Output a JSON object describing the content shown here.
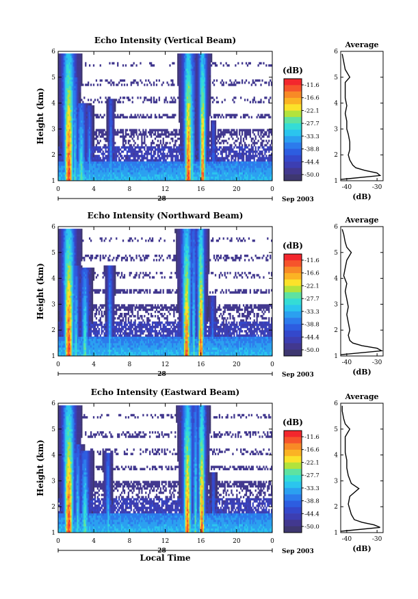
{
  "figure": {
    "xlabel_bottom": "Local Time",
    "date_label": "Sep 2003",
    "day_label": "28",
    "avg_title": "Average",
    "avg_xlabel": "(dB)",
    "cbar_unit": "(dB)"
  },
  "colorbar": {
    "ticks": [
      "-11.6",
      "-16.6",
      "-22.1",
      "-27.7",
      "-33.3",
      "-38.8",
      "-44.4",
      "-50.0"
    ],
    "colors": [
      "#f3272d",
      "#f6542b",
      "#f88a26",
      "#fbb324",
      "#fbe22a",
      "#b2e33c",
      "#5ee2a1",
      "#34dcd6",
      "#2bc5ee",
      "#2ba0f0",
      "#2c7bec",
      "#2d5de0",
      "#3448cb",
      "#3c3eb2",
      "#42388f",
      "#3e3770"
    ]
  },
  "chart_data": [
    {
      "type": "heatmap",
      "title": "Echo Intensity (Vertical Beam)",
      "xlabel": "",
      "ylabel": "Height (km)",
      "xlim": [
        0,
        24
      ],
      "ylim": [
        1,
        6
      ],
      "xticks": [
        "0",
        "4",
        "8",
        "12",
        "16",
        "20",
        "0"
      ],
      "yticks": [
        "1",
        "2",
        "3",
        "4",
        "5",
        "6"
      ],
      "value_range_db": [
        -50.0,
        -11.6
      ],
      "avg_profile": {
        "title": "Average",
        "xlabel": "(dB)",
        "xlim": [
          -42,
          -28
        ],
        "xticks": [
          "-40",
          "-30"
        ],
        "ylim": [
          1,
          6
        ],
        "height_km": [
          1.05,
          1.2,
          1.3,
          1.4,
          1.5,
          1.6,
          1.8,
          2.0,
          2.2,
          2.5,
          2.8,
          3.0,
          3.3,
          3.6,
          3.9,
          4.2,
          4.5,
          4.8,
          5.0,
          5.3,
          5.6,
          5.9
        ],
        "power_db": [
          -42,
          -29,
          -30,
          -34,
          -37,
          -38,
          -39,
          -39.5,
          -39,
          -39,
          -39.5,
          -40,
          -40,
          -40.5,
          -40,
          -40.5,
          -40.5,
          -40.5,
          -39,
          -40.5,
          -41,
          -41.5
        ]
      }
    },
    {
      "type": "heatmap",
      "title": "Echo Intensity (Northward Beam)",
      "xlabel": "",
      "ylabel": "Height (km)",
      "xlim": [
        0,
        24
      ],
      "ylim": [
        1,
        6
      ],
      "xticks": [
        "0",
        "4",
        "8",
        "12",
        "16",
        "20",
        "0"
      ],
      "yticks": [
        "1",
        "2",
        "3",
        "4",
        "5",
        "6"
      ],
      "value_range_db": [
        -50.0,
        -11.6
      ],
      "avg_profile": {
        "title": "Average",
        "xlabel": "(dB)",
        "xlim": [
          -42,
          -28
        ],
        "xticks": [
          "-40",
          "-30"
        ],
        "ylim": [
          1,
          6
        ],
        "height_km": [
          1.05,
          1.2,
          1.3,
          1.4,
          1.5,
          1.6,
          1.8,
          2.0,
          2.3,
          2.6,
          2.9,
          3.2,
          3.5,
          3.8,
          4.1,
          4.4,
          4.7,
          5.0,
          5.2,
          5.4,
          5.7,
          5.9
        ],
        "power_db": [
          -42,
          -28.5,
          -30,
          -35,
          -38,
          -39,
          -39.5,
          -39,
          -39.5,
          -40,
          -39.5,
          -40,
          -40.5,
          -40,
          -41,
          -40.5,
          -40,
          -38.5,
          -40,
          -40.5,
          -41,
          -41.5
        ]
      }
    },
    {
      "type": "heatmap",
      "title": "Echo Intensity (Eastward Beam)",
      "xlabel": "Local Time",
      "ylabel": "Height (km)",
      "xlim": [
        0,
        24
      ],
      "ylim": [
        1,
        6
      ],
      "xticks": [
        "0",
        "4",
        "8",
        "12",
        "16",
        "20",
        "0"
      ],
      "yticks": [
        "1",
        "2",
        "3",
        "4",
        "5",
        "6"
      ],
      "value_range_db": [
        -50.0,
        -11.6
      ],
      "avg_profile": {
        "title": "Average",
        "xlabel": "(dB)",
        "xlim": [
          -42,
          -28
        ],
        "xticks": [
          "-40",
          "-30"
        ],
        "ylim": [
          1,
          6
        ],
        "height_km": [
          1.05,
          1.2,
          1.3,
          1.4,
          1.5,
          1.7,
          1.9,
          2.1,
          2.4,
          2.7,
          2.9,
          3.2,
          3.5,
          3.8,
          4.1,
          4.4,
          4.7,
          5.0,
          5.2,
          5.4,
          5.7,
          5.9
        ],
        "power_db": [
          -42,
          -29,
          -31,
          -35,
          -37.5,
          -38.5,
          -39,
          -39.5,
          -39,
          -36,
          -38.5,
          -39.5,
          -40,
          -40,
          -40.5,
          -40.5,
          -40.5,
          -39,
          -40.5,
          -41,
          -41.5,
          -41.5
        ]
      }
    }
  ]
}
